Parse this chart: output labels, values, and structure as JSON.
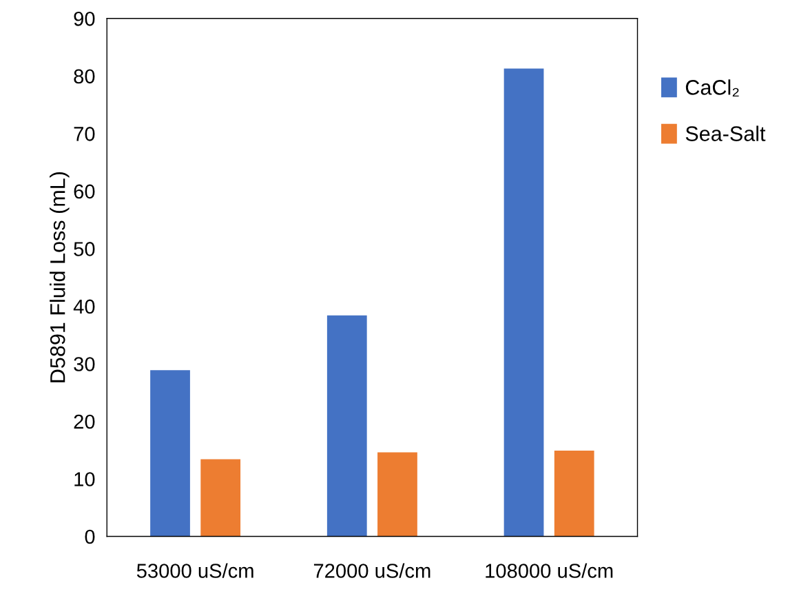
{
  "chart_data": {
    "type": "bar",
    "ylabel": "D5891 Fluid Loss (mL)",
    "categories": [
      "53000 uS/cm",
      "72000 uS/cm",
      "108000 uS/cm"
    ],
    "series": [
      {
        "name": "CaCl₂",
        "color": "#4472c4",
        "values": [
          28.9,
          38.4,
          81.3
        ]
      },
      {
        "name": "Sea-Salt",
        "color": "#ed7d31",
        "values": [
          13.4,
          14.6,
          14.9
        ]
      }
    ],
    "ylim": [
      0,
      90
    ],
    "yticks": [
      0,
      10,
      20,
      30,
      40,
      50,
      60,
      70,
      80,
      90
    ],
    "grid": false,
    "legend": "right"
  }
}
